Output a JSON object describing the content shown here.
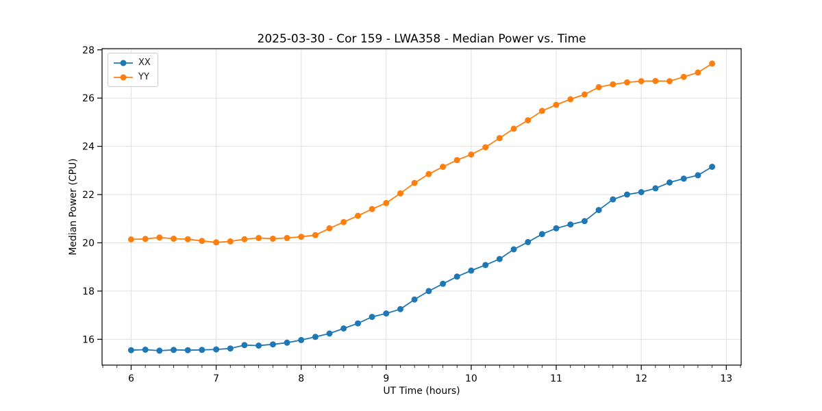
{
  "title": "2025-03-30 - Cor 159 - LWA358 - Median Power vs. Time",
  "colors": {
    "series_xx": "#1f77b4",
    "series_yy": "#ff7f0e",
    "grid": "#e0e0e0",
    "axis": "#000000",
    "legend_border": "#cccccc"
  },
  "legend": {
    "position": "upper-left",
    "entries": [
      "XX",
      "YY"
    ]
  },
  "chart_data": {
    "type": "line",
    "title": "2025-03-30 - Cor 159 - LWA358 - Median Power vs. Time",
    "xlabel": "UT Time (hours)",
    "ylabel": "Median Power (CPU)",
    "xlim": [
      5.658,
      13.175
    ],
    "ylim": [
      14.93,
      28.05
    ],
    "xticks": [
      6,
      7,
      8,
      9,
      10,
      11,
      12,
      13
    ],
    "yticks": [
      16,
      18,
      20,
      22,
      24,
      26,
      28
    ],
    "x_minor_subdivisions": 6,
    "grid": true,
    "legend_position": "upper-left",
    "x": [
      6.0,
      6.167,
      6.333,
      6.5,
      6.667,
      6.833,
      7.0,
      7.167,
      7.333,
      7.5,
      7.667,
      7.833,
      8.0,
      8.167,
      8.333,
      8.5,
      8.667,
      8.833,
      9.0,
      9.167,
      9.333,
      9.5,
      9.667,
      9.833,
      10.0,
      10.167,
      10.333,
      10.5,
      10.667,
      10.833,
      11.0,
      11.167,
      11.333,
      11.5,
      11.667,
      11.833,
      12.0,
      12.167,
      12.333,
      12.5,
      12.667,
      12.833
    ],
    "series": [
      {
        "name": "XX",
        "color": "#1f77b4",
        "values": [
          15.55,
          15.57,
          15.53,
          15.56,
          15.55,
          15.56,
          15.58,
          15.62,
          15.76,
          15.74,
          15.79,
          15.86,
          15.97,
          16.1,
          16.24,
          16.45,
          16.66,
          16.93,
          17.07,
          17.25,
          17.65,
          18.0,
          18.3,
          18.6,
          18.85,
          19.08,
          19.33,
          19.73,
          20.03,
          20.36,
          20.6,
          20.76,
          20.9,
          21.36,
          21.8,
          22.0,
          22.1,
          22.26,
          22.5,
          22.66,
          22.8,
          23.15
        ]
      },
      {
        "name": "YY",
        "color": "#ff7f0e",
        "values": [
          20.14,
          20.16,
          20.22,
          20.17,
          20.15,
          20.08,
          20.02,
          20.06,
          20.15,
          20.2,
          20.17,
          20.2,
          20.25,
          20.32,
          20.6,
          20.86,
          21.12,
          21.4,
          21.65,
          22.05,
          22.48,
          22.85,
          23.15,
          23.43,
          23.66,
          23.96,
          24.34,
          24.73,
          25.08,
          25.47,
          25.72,
          25.95,
          26.15,
          26.45,
          26.57,
          26.65,
          26.7,
          26.71,
          26.7,
          26.88,
          27.06,
          27.43
        ]
      }
    ]
  }
}
